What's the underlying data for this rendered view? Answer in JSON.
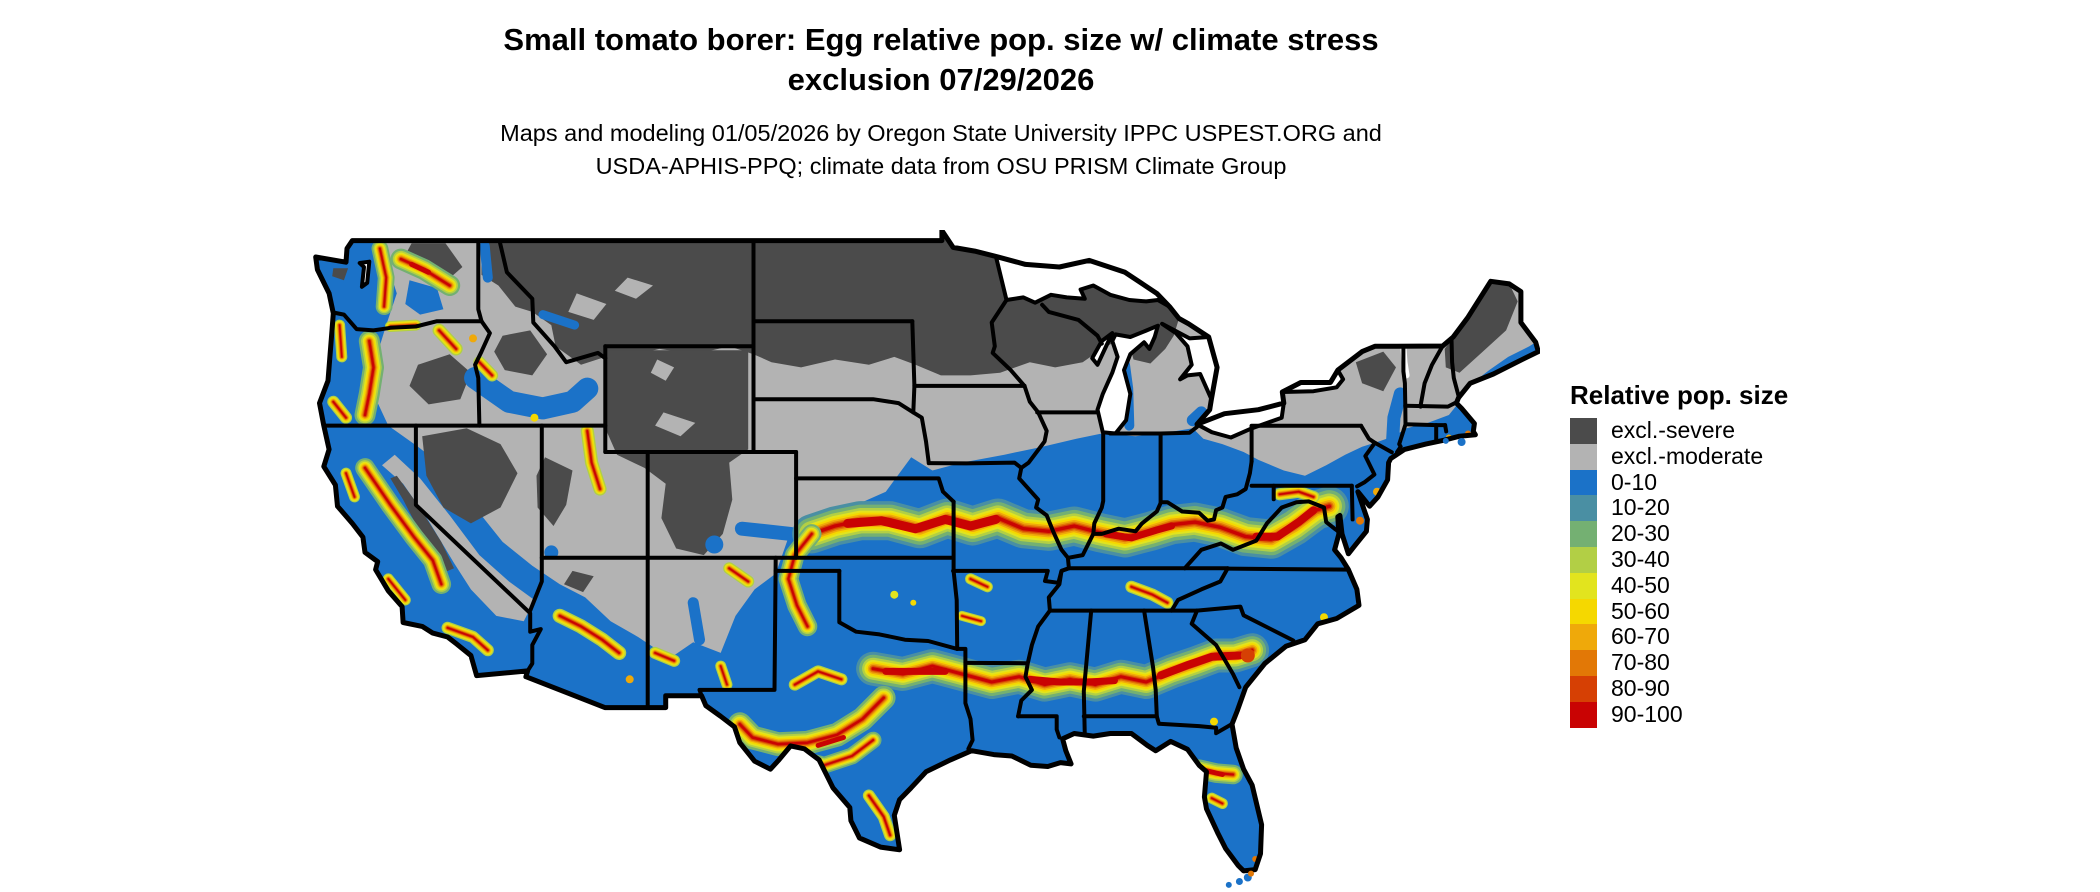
{
  "header": {
    "title_line1": "Small tomato borer: Egg relative pop. size w/ climate stress",
    "title_line2": "exclusion 07/29/2026",
    "subtitle_line1": "Maps and modeling 01/05/2026 by Oregon State University IPPC USPEST.ORG and",
    "subtitle_line2": "USDA-APHIS-PPQ; climate data from OSU PRISM Climate Group"
  },
  "legend": {
    "title": "Relative pop. size",
    "items": [
      {
        "key": "severe",
        "label": "excl.-severe",
        "color": "#4B4B4B"
      },
      {
        "key": "moderate",
        "label": "excl.-moderate",
        "color": "#B3B3B3"
      },
      {
        "key": "c0",
        "label": "0-10",
        "color": "#1B72C8"
      },
      {
        "key": "c10",
        "label": "10-20",
        "color": "#4A8FA3"
      },
      {
        "key": "c20",
        "label": "20-30",
        "color": "#74B072"
      },
      {
        "key": "c30",
        "label": "30-40",
        "color": "#B2CF45"
      },
      {
        "key": "c40",
        "label": "40-50",
        "color": "#E2E41E"
      },
      {
        "key": "c50",
        "label": "50-60",
        "color": "#F5D800"
      },
      {
        "key": "c60",
        "label": "60-70",
        "color": "#EFA90A"
      },
      {
        "key": "c70",
        "label": "70-80",
        "color": "#E27806"
      },
      {
        "key": "c80",
        "label": "80-90",
        "color": "#D64004"
      },
      {
        "key": "c90",
        "label": "90-100",
        "color": "#C90303"
      }
    ]
  },
  "map": {
    "outline_color": "#000000",
    "water_color": "#FFFFFF"
  }
}
